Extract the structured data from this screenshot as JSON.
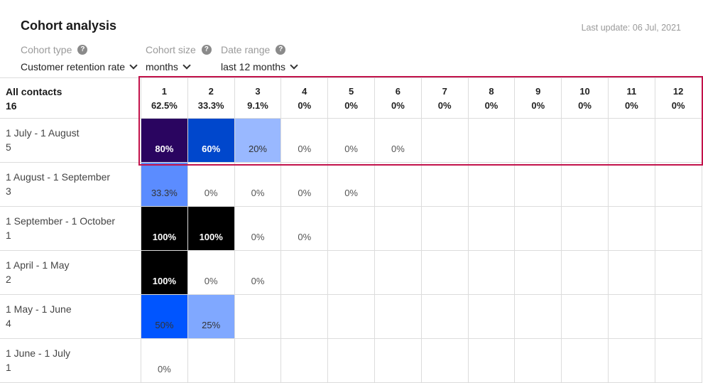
{
  "header": {
    "title": "Cohort analysis",
    "last_update_label": "Last update:",
    "last_update_value": "06 Jul, 2021"
  },
  "filters": [
    {
      "label": "Cohort type",
      "value": "Customer retention rate",
      "icon": "help-icon"
    },
    {
      "label": "Cohort size",
      "value": "months",
      "icon": "help-icon"
    },
    {
      "label": "Date range",
      "value": "last 12 months",
      "icon": "help-icon"
    }
  ],
  "table": {
    "summary": {
      "label": "All contacts",
      "count": "16"
    },
    "columns": [
      {
        "period": "1",
        "rate": "62.5%"
      },
      {
        "period": "2",
        "rate": "33.3%"
      },
      {
        "period": "3",
        "rate": "9.1%"
      },
      {
        "period": "4",
        "rate": "0%"
      },
      {
        "period": "5",
        "rate": "0%"
      },
      {
        "period": "6",
        "rate": "0%"
      },
      {
        "period": "7",
        "rate": "0%"
      },
      {
        "period": "8",
        "rate": "0%"
      },
      {
        "period": "9",
        "rate": "0%"
      },
      {
        "period": "10",
        "rate": "0%"
      },
      {
        "period": "11",
        "rate": "0%"
      },
      {
        "period": "12",
        "rate": "0%"
      }
    ],
    "rows": [
      {
        "range": "1 July - 1 August",
        "count": "5",
        "cells": [
          {
            "value": "80%",
            "color": "#2a0560",
            "tone": "dark"
          },
          {
            "value": "60%",
            "color": "#0047cc",
            "tone": "dark"
          },
          {
            "value": "20%",
            "color": "#99b8ff",
            "tone": "mid"
          },
          {
            "value": "0%"
          },
          {
            "value": "0%"
          },
          {
            "value": "0%"
          },
          {},
          {},
          {},
          {},
          {},
          {}
        ]
      },
      {
        "range": "1 August - 1 September",
        "count": "3",
        "cells": [
          {
            "value": "33.3%",
            "color": "#5b8cff",
            "tone": "mid"
          },
          {
            "value": "0%"
          },
          {
            "value": "0%"
          },
          {
            "value": "0%"
          },
          {
            "value": "0%"
          },
          {},
          {},
          {},
          {},
          {},
          {},
          {}
        ]
      },
      {
        "range": "1 September - 1 October",
        "count": "1",
        "cells": [
          {
            "value": "100%",
            "color": "#000000",
            "tone": "dark"
          },
          {
            "value": "100%",
            "color": "#000000",
            "tone": "dark"
          },
          {
            "value": "0%"
          },
          {
            "value": "0%"
          },
          {},
          {},
          {},
          {},
          {},
          {},
          {},
          {}
        ]
      },
      {
        "range": "1 April - 1 May",
        "count": "2",
        "cells": [
          {
            "value": "100%",
            "color": "#000000",
            "tone": "dark"
          },
          {
            "value": "0%"
          },
          {
            "value": "0%"
          },
          {},
          {},
          {},
          {},
          {},
          {},
          {},
          {},
          {}
        ]
      },
      {
        "range": "1 May - 1 June",
        "count": "4",
        "cells": [
          {
            "value": "50%",
            "color": "#0055ff",
            "tone": "mid"
          },
          {
            "value": "25%",
            "color": "#80a8ff",
            "tone": "mid"
          },
          {},
          {},
          {},
          {},
          {},
          {},
          {},
          {},
          {},
          {}
        ]
      },
      {
        "range": "1 June - 1 July",
        "count": "1",
        "cells": [
          {
            "value": "0%"
          },
          {},
          {},
          {},
          {},
          {},
          {},
          {},
          {},
          {},
          {},
          {}
        ]
      }
    ]
  },
  "highlight_color": "#c2124b"
}
